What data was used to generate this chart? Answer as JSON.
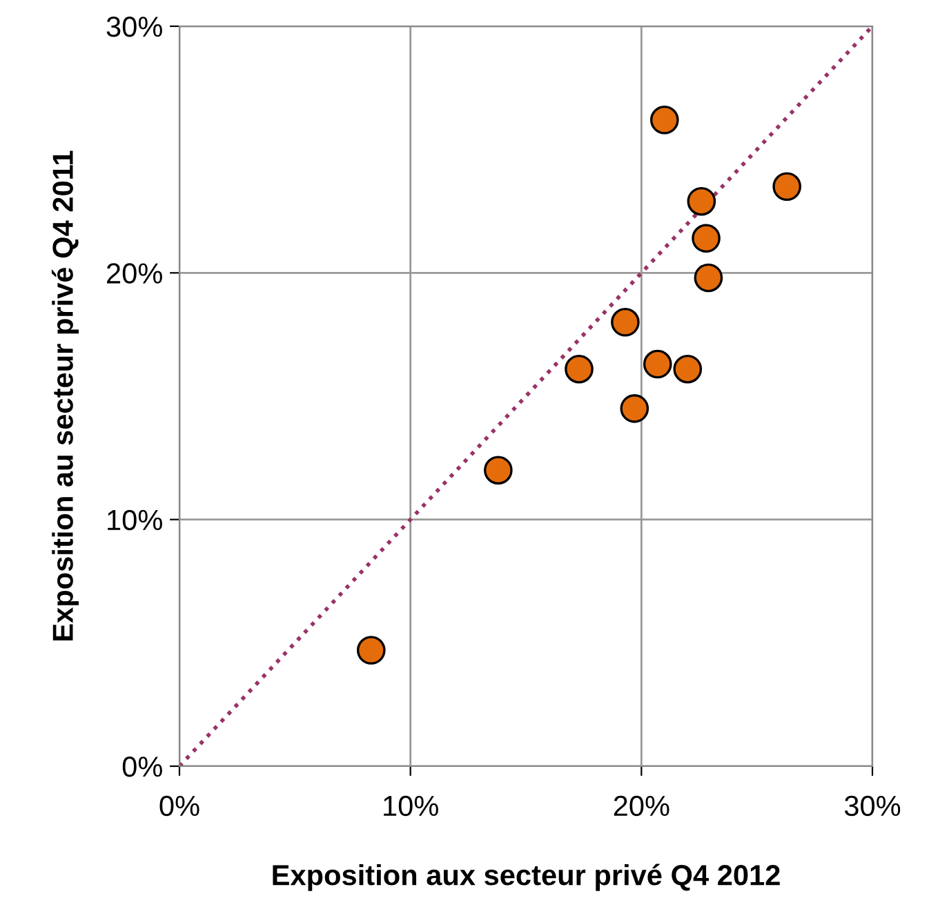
{
  "chart_data": {
    "type": "scatter",
    "xlabel": "Exposition aux secteur privé Q4 2012",
    "ylabel": "Exposition au secteur privé Q4 2011",
    "xlim": [
      0,
      30
    ],
    "ylim": [
      0,
      30
    ],
    "xticks": [
      {
        "value": 0,
        "label": "0%"
      },
      {
        "value": 10,
        "label": "10%"
      },
      {
        "value": 20,
        "label": "20%"
      },
      {
        "value": 30,
        "label": "30%"
      }
    ],
    "yticks": [
      {
        "value": 0,
        "label": "0%"
      },
      {
        "value": 10,
        "label": "10%"
      },
      {
        "value": 20,
        "label": "20%"
      },
      {
        "value": 30,
        "label": "30%"
      }
    ],
    "grid": true,
    "legend": false,
    "marker": "circle",
    "series": [
      {
        "color": "#e46c0a",
        "x": [
          8.3,
          13.8,
          17.3,
          19.3,
          19.7,
          20.7,
          22.0,
          21.0,
          22.6,
          22.8,
          22.9,
          26.3
        ],
        "values": [
          4.7,
          12.0,
          16.1,
          18.0,
          14.5,
          16.3,
          16.1,
          26.2,
          22.9,
          21.4,
          19.8,
          23.5
        ]
      },
      {
        "type": "line",
        "color": "#993366",
        "line_style": "dotted",
        "marker": "none",
        "x": [
          0,
          30
        ],
        "values": [
          0,
          30
        ]
      }
    ]
  }
}
